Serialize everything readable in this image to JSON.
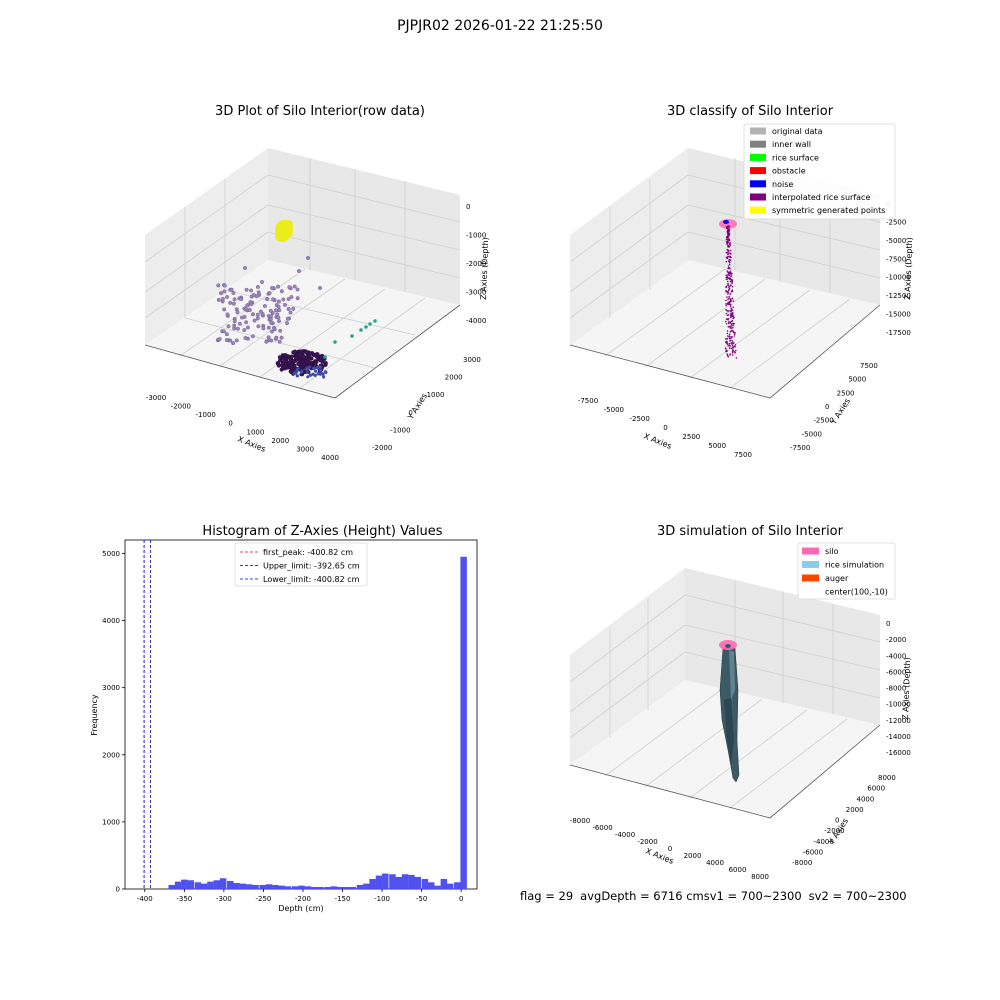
{
  "suptitle": "PJPJR02 2026-01-22 21:25:50",
  "footer": {
    "flag": "flag = 29",
    "avg": "avgDepth = 6716 cmsv1 = 700~2300",
    "sv2": "sv2 = 700~2300"
  },
  "chart_data": [
    {
      "type": "scatter",
      "title": "3D Plot of Silo Interior(row data)",
      "xlabel": "X Axies",
      "ylabel": "Y Axies",
      "zlabel": "Z Axies (Depth)",
      "xticks": [
        "-3000",
        "-2000",
        "-1000",
        "0",
        "1000",
        "2000",
        "3000",
        "4000"
      ],
      "yticks": [
        "-2000",
        "-1000",
        "0",
        "1000",
        "2000",
        "3000"
      ],
      "zticks": [
        "0",
        "-1000",
        "-2000",
        "-3000",
        "-4000"
      ]
    },
    {
      "type": "scatter",
      "title": "3D classify of Silo Interior",
      "xlabel": "X Axies",
      "ylabel": "Y Axies",
      "zlabel": "Z Axies (Depth)",
      "xticks": [
        "-7500",
        "-5000",
        "-2500",
        "0",
        "2500",
        "5000",
        "7500"
      ],
      "yticks": [
        "-7500",
        "-5000",
        "-2500",
        "0",
        "2500",
        "5000",
        "7500"
      ],
      "zticks": [
        "0",
        "-2500",
        "-5000",
        "-7500",
        "-10000",
        "-12500",
        "-15000",
        "-17500"
      ],
      "legend": [
        {
          "label": "original data",
          "color": "#b3b3b3"
        },
        {
          "label": "inner wall",
          "color": "#808080"
        },
        {
          "label": "rice surface",
          "color": "#00ff00"
        },
        {
          "label": "obstacle",
          "color": "#ff0000"
        },
        {
          "label": "noise",
          "color": "#0000ff"
        },
        {
          "label": "interpolated rice surface",
          "color": "#800080"
        },
        {
          "label": "symmetric generated points",
          "color": "#ffff00"
        }
      ]
    },
    {
      "type": "bar",
      "title": "Histogram of Z-Axies (Height) Values",
      "xlabel": "Depth (cm)",
      "ylabel": "Frequency",
      "xlim": [
        -425,
        20
      ],
      "ylim": [
        0,
        5200
      ],
      "xticks": [
        -400,
        -350,
        -300,
        -250,
        -200,
        -150,
        -100,
        -50,
        0
      ],
      "yticks": [
        0,
        1000,
        2000,
        3000,
        4000,
        5000
      ],
      "bin_width": 8.2,
      "bins_start": [
        -370,
        -362,
        -354,
        -346,
        -337,
        -329,
        -321,
        -313,
        -305,
        -296,
        -288,
        -280,
        -272,
        -264,
        -255,
        -247,
        -239,
        -231,
        -223,
        -214,
        -206,
        -198,
        -190,
        -182,
        -173,
        -165,
        -157,
        -149,
        -141,
        -132,
        -124,
        -116,
        -108,
        -100,
        -91,
        -83,
        -75,
        -67,
        -59,
        -50,
        -42,
        -34,
        -26,
        -18,
        -9,
        -1
      ],
      "counts": [
        60,
        110,
        140,
        130,
        100,
        80,
        110,
        130,
        160,
        120,
        90,
        80,
        70,
        60,
        60,
        70,
        60,
        50,
        40,
        40,
        50,
        40,
        30,
        30,
        30,
        40,
        30,
        30,
        30,
        60,
        80,
        150,
        200,
        230,
        220,
        180,
        220,
        210,
        180,
        150,
        100,
        50,
        150,
        80,
        100,
        4950
      ],
      "color": "#4b4bf0",
      "vlines": [
        {
          "label": "first_peak: -400.82 cm",
          "x": -400.82,
          "color": "#ff0000"
        },
        {
          "label": "Upper_limit: -392.65 cm",
          "x": -392.65,
          "color": "#00008b"
        },
        {
          "label": "Lower_limit: -400.82 cm",
          "x": -400.82,
          "color": "#0000ff"
        }
      ]
    },
    {
      "type": "surface",
      "title": "3D simulation of Silo Interior",
      "xlabel": "X Axies",
      "ylabel": "Y Axies",
      "zlabel": "Z Axies (Depth)",
      "xticks": [
        "-8000",
        "-6000",
        "-4000",
        "-2000",
        "0",
        "2000",
        "4000",
        "6000",
        "8000"
      ],
      "yticks": [
        "-8000",
        "-6000",
        "-4000",
        "-2000",
        "0",
        "2000",
        "4000",
        "6000",
        "8000"
      ],
      "zticks": [
        "0",
        "-2000",
        "-4000",
        "-6000",
        "-8000",
        "-10000",
        "-12000",
        "-14000",
        "-16000"
      ],
      "legend": [
        {
          "label": "silo",
          "color": "#ff69b4"
        },
        {
          "label": "rice simulation",
          "color": "#87ceeb"
        },
        {
          "label": "auger",
          "color": "#ff4500"
        },
        {
          "label": "center(100,-10)",
          "color": ""
        }
      ]
    }
  ]
}
